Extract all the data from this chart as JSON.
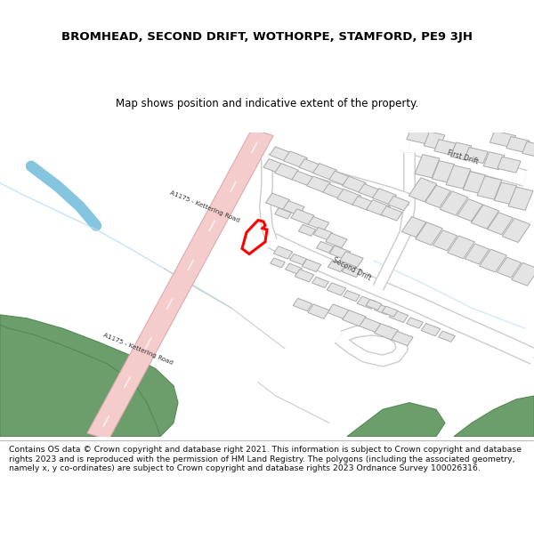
{
  "title": "BROMHEAD, SECOND DRIFT, WOTHORPE, STAMFORD, PE9 3JH",
  "subtitle": "Map shows position and indicative extent of the property.",
  "footer": "Contains OS data © Crown copyright and database right 2021. This information is subject to Crown copyright and database rights 2023 and is reproduced with the permission of HM Land Registry. The polygons (including the associated geometry, namely x, y co-ordinates) are subject to Crown copyright and database rights 2023 Ordnance Survey 100026316.",
  "map_bg": "#ffffff",
  "road_color": "#f5cccc",
  "road_edge_color": "#ddaaaa",
  "building_color": "#e4e4e4",
  "building_edge_color": "#aaaaaa",
  "green_color": "#6b9e6b",
  "green_edge_color": "#558855",
  "blue_thick": "#85c5e0",
  "blue_thin": "#b8ddf0",
  "highlight_color": "#ff0000",
  "road_label": "A1175 - Kettering Road",
  "label_second_drift": "Second Drift",
  "label_first_drift": "First Drift"
}
